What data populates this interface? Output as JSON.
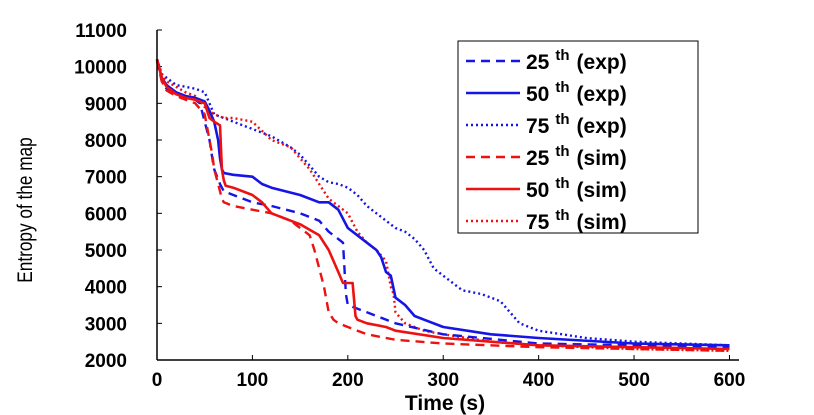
{
  "chart_data": {
    "type": "line",
    "title": "",
    "xlabel": "Time (s)",
    "ylabel": "Entropy of the map",
    "xlim": [
      0,
      610
    ],
    "ylim": [
      2000,
      11000
    ],
    "xticks": [
      "0",
      "100",
      "200",
      "300",
      "400",
      "500",
      "600"
    ],
    "yticks": [
      "2000",
      "3000",
      "4000",
      "5000",
      "6000",
      "7000",
      "8000",
      "9000",
      "10000",
      "11000"
    ],
    "legend_position": "top-right",
    "colors": {
      "exp": "#1515e6",
      "sim": "#ee1111"
    },
    "series": [
      {
        "name": "25 th (exp)",
        "label_num": "25",
        "label_sup": "th",
        "label_tag": "(exp)",
        "color": "#1515e6",
        "style": "dashed",
        "x": [
          0,
          5,
          10,
          20,
          30,
          40,
          45,
          50,
          55,
          58,
          60,
          63,
          66,
          70,
          80,
          100,
          120,
          150,
          170,
          180,
          190,
          195,
          198,
          200,
          220,
          250,
          300,
          400,
          500,
          600
        ],
        "y": [
          10200,
          9600,
          9400,
          9250,
          9150,
          9100,
          9000,
          8500,
          8000,
          7500,
          7200,
          7000,
          6800,
          6600,
          6500,
          6300,
          6200,
          6000,
          5800,
          5500,
          5300,
          5200,
          3800,
          3500,
          3300,
          3000,
          2700,
          2450,
          2400,
          2350
        ]
      },
      {
        "name": "50 th (exp)",
        "label_num": "50",
        "label_sup": "th",
        "label_tag": "(exp)",
        "color": "#1515e6",
        "style": "solid",
        "x": [
          0,
          5,
          10,
          20,
          30,
          40,
          50,
          55,
          60,
          64,
          66,
          68,
          70,
          80,
          100,
          110,
          120,
          150,
          170,
          180,
          190,
          200,
          210,
          220,
          230,
          235,
          240,
          245,
          250,
          260,
          270,
          280,
          300,
          350,
          400,
          500,
          600
        ],
        "y": [
          10200,
          9700,
          9500,
          9300,
          9200,
          9150,
          9050,
          8800,
          8500,
          8000,
          7500,
          7200,
          7100,
          7050,
          7000,
          6800,
          6700,
          6500,
          6300,
          6300,
          6100,
          5600,
          5400,
          5200,
          5000,
          4800,
          4400,
          4300,
          3700,
          3500,
          3200,
          3100,
          2900,
          2700,
          2600,
          2450,
          2400
        ]
      },
      {
        "name": "75 th (exp)",
        "label_num": "75",
        "label_sup": "th",
        "label_tag": "(exp)",
        "color": "#1515e6",
        "style": "dotted",
        "x": [
          0,
          5,
          10,
          20,
          30,
          40,
          50,
          60,
          70,
          80,
          100,
          120,
          140,
          150,
          160,
          170,
          180,
          190,
          200,
          210,
          220,
          230,
          240,
          250,
          260,
          270,
          280,
          290,
          300,
          310,
          320,
          340,
          360,
          370,
          380,
          400,
          450,
          500,
          550,
          600
        ],
        "y": [
          10200,
          9800,
          9700,
          9500,
          9450,
          9400,
          9300,
          8700,
          8600,
          8500,
          8300,
          8100,
          7800,
          7600,
          7300,
          7000,
          6850,
          6800,
          6700,
          6500,
          6200,
          6000,
          5800,
          5600,
          5500,
          5300,
          5000,
          4500,
          4300,
          4100,
          3900,
          3800,
          3600,
          3300,
          3000,
          2800,
          2600,
          2500,
          2450,
          2400
        ]
      },
      {
        "name": "25 th (sim)",
        "label_num": "25",
        "label_sup": "th",
        "label_tag": "(sim)",
        "color": "#ee1111",
        "style": "dashed",
        "x": [
          0,
          5,
          10,
          20,
          30,
          40,
          50,
          55,
          58,
          60,
          62,
          64,
          66,
          68,
          70,
          80,
          100,
          120,
          140,
          150,
          160,
          165,
          170,
          175,
          180,
          185,
          190,
          200,
          220,
          250,
          300,
          400,
          500,
          600
        ],
        "y": [
          10150,
          9600,
          9350,
          9200,
          9100,
          9000,
          8700,
          8000,
          7600,
          7200,
          7000,
          6800,
          6600,
          6400,
          6300,
          6200,
          6100,
          6000,
          5800,
          5600,
          5400,
          5000,
          4500,
          4000,
          3300,
          3100,
          3000,
          2900,
          2700,
          2550,
          2450,
          2350,
          2300,
          2250
        ]
      },
      {
        "name": "50 th (sim)",
        "label_num": "50",
        "label_sup": "th",
        "label_tag": "(sim)",
        "color": "#ee1111",
        "style": "solid",
        "x": [
          0,
          5,
          10,
          20,
          30,
          40,
          50,
          55,
          60,
          66,
          68,
          70,
          72,
          80,
          100,
          110,
          120,
          150,
          170,
          180,
          190,
          195,
          200,
          205,
          208,
          210,
          220,
          240,
          250,
          300,
          350,
          400,
          500,
          600
        ],
        "y": [
          10200,
          9700,
          9450,
          9250,
          9150,
          9100,
          9000,
          8600,
          8500,
          8400,
          7200,
          6900,
          6750,
          6700,
          6500,
          6300,
          6000,
          5700,
          5400,
          5000,
          4400,
          4100,
          4100,
          4100,
          3200,
          3100,
          3000,
          2900,
          2800,
          2600,
          2500,
          2400,
          2350,
          2300
        ]
      },
      {
        "name": "75 th (sim)",
        "label_num": "75",
        "label_sup": "th",
        "label_tag": "(sim)",
        "color": "#ee1111",
        "style": "dotted",
        "x": [
          0,
          5,
          10,
          20,
          30,
          40,
          50,
          60,
          70,
          80,
          100,
          120,
          140,
          150,
          160,
          170,
          180,
          190,
          200,
          210,
          220,
          230,
          240,
          245,
          248,
          250,
          260,
          280,
          300,
          350,
          400,
          500,
          600
        ],
        "y": [
          10200,
          9800,
          9600,
          9450,
          9300,
          9200,
          8900,
          8700,
          8600,
          8600,
          8500,
          8000,
          7800,
          7500,
          7200,
          6800,
          6400,
          6200,
          6000,
          5500,
          5200,
          5000,
          4700,
          4000,
          3800,
          3300,
          3000,
          2800,
          2700,
          2500,
          2400,
          2300,
          2250
        ]
      }
    ]
  }
}
